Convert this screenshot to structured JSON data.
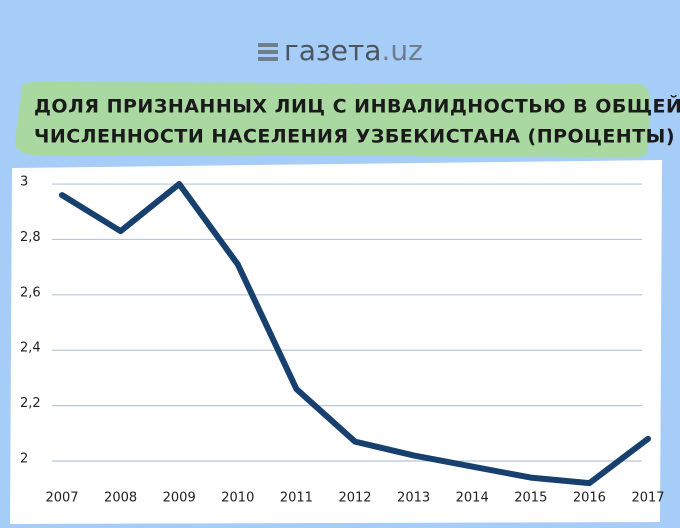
{
  "brand": {
    "name": "газета",
    "domain": ".uz"
  },
  "chart_data": {
    "type": "line",
    "title": [
      "ДОЛЯ ПРИЗНАННЫХ ЛИЦ С ИНВАЛИДНОСТЬЮ В ОБЩЕЙ",
      "ЧИСЛЕННОСТИ НАСЕЛЕНИЯ УЗБЕКИСТАНА (ПРОЦЕНТЫ)"
    ],
    "categories": [
      "2007",
      "2008",
      "2009",
      "2010",
      "2011",
      "2012",
      "2013",
      "2014",
      "2015",
      "2016",
      "2017"
    ],
    "values": [
      2.96,
      2.83,
      3.0,
      2.71,
      2.26,
      2.07,
      2.02,
      1.98,
      1.94,
      1.92,
      2.08
    ],
    "color": "#17406f",
    "ylim": [
      1.87,
      3.02
    ],
    "yticks": [
      2,
      {
        "value": 2.2,
        "label": "2,2"
      },
      {
        "value": 2.4,
        "label": "2,4"
      },
      {
        "value": 2.6,
        "label": "2,6"
      },
      {
        "value": 2.8,
        "label": "2,8"
      },
      3
    ],
    "grid": true
  }
}
